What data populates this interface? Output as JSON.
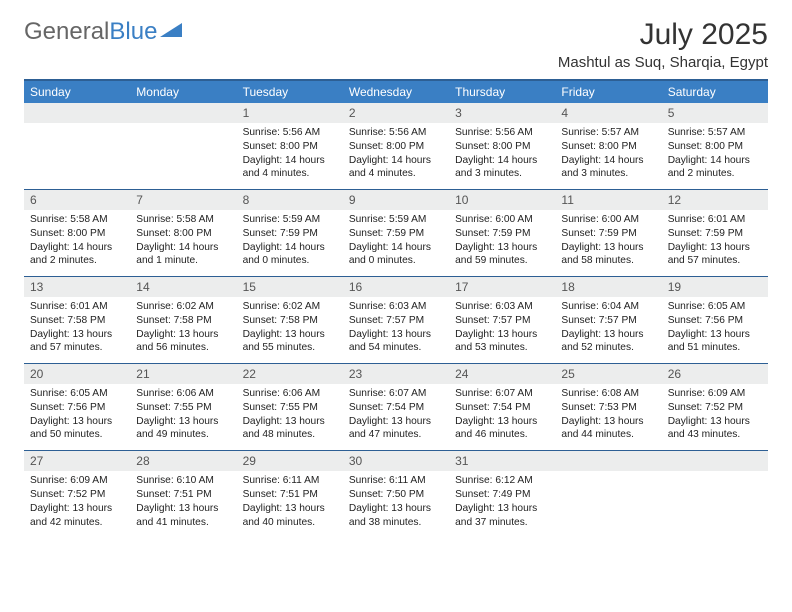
{
  "brand": {
    "part1": "General",
    "part2": "Blue"
  },
  "title": "July 2025",
  "location": "Mashtul as Suq, Sharqia, Egypt",
  "colors": {
    "header_bg": "#3a7fc4",
    "header_border": "#2d5f94",
    "daynum_bg": "#eceded",
    "text": "#222222"
  },
  "daysOfWeek": [
    "Sunday",
    "Monday",
    "Tuesday",
    "Wednesday",
    "Thursday",
    "Friday",
    "Saturday"
  ],
  "weeks": [
    [
      null,
      null,
      {
        "n": "1",
        "sr": "5:56 AM",
        "ss": "8:00 PM",
        "dl": "14 hours and 4 minutes."
      },
      {
        "n": "2",
        "sr": "5:56 AM",
        "ss": "8:00 PM",
        "dl": "14 hours and 4 minutes."
      },
      {
        "n": "3",
        "sr": "5:56 AM",
        "ss": "8:00 PM",
        "dl": "14 hours and 3 minutes."
      },
      {
        "n": "4",
        "sr": "5:57 AM",
        "ss": "8:00 PM",
        "dl": "14 hours and 3 minutes."
      },
      {
        "n": "5",
        "sr": "5:57 AM",
        "ss": "8:00 PM",
        "dl": "14 hours and 2 minutes."
      }
    ],
    [
      {
        "n": "6",
        "sr": "5:58 AM",
        "ss": "8:00 PM",
        "dl": "14 hours and 2 minutes."
      },
      {
        "n": "7",
        "sr": "5:58 AM",
        "ss": "8:00 PM",
        "dl": "14 hours and 1 minute."
      },
      {
        "n": "8",
        "sr": "5:59 AM",
        "ss": "7:59 PM",
        "dl": "14 hours and 0 minutes."
      },
      {
        "n": "9",
        "sr": "5:59 AM",
        "ss": "7:59 PM",
        "dl": "14 hours and 0 minutes."
      },
      {
        "n": "10",
        "sr": "6:00 AM",
        "ss": "7:59 PM",
        "dl": "13 hours and 59 minutes."
      },
      {
        "n": "11",
        "sr": "6:00 AM",
        "ss": "7:59 PM",
        "dl": "13 hours and 58 minutes."
      },
      {
        "n": "12",
        "sr": "6:01 AM",
        "ss": "7:59 PM",
        "dl": "13 hours and 57 minutes."
      }
    ],
    [
      {
        "n": "13",
        "sr": "6:01 AM",
        "ss": "7:58 PM",
        "dl": "13 hours and 57 minutes."
      },
      {
        "n": "14",
        "sr": "6:02 AM",
        "ss": "7:58 PM",
        "dl": "13 hours and 56 minutes."
      },
      {
        "n": "15",
        "sr": "6:02 AM",
        "ss": "7:58 PM",
        "dl": "13 hours and 55 minutes."
      },
      {
        "n": "16",
        "sr": "6:03 AM",
        "ss": "7:57 PM",
        "dl": "13 hours and 54 minutes."
      },
      {
        "n": "17",
        "sr": "6:03 AM",
        "ss": "7:57 PM",
        "dl": "13 hours and 53 minutes."
      },
      {
        "n": "18",
        "sr": "6:04 AM",
        "ss": "7:57 PM",
        "dl": "13 hours and 52 minutes."
      },
      {
        "n": "19",
        "sr": "6:05 AM",
        "ss": "7:56 PM",
        "dl": "13 hours and 51 minutes."
      }
    ],
    [
      {
        "n": "20",
        "sr": "6:05 AM",
        "ss": "7:56 PM",
        "dl": "13 hours and 50 minutes."
      },
      {
        "n": "21",
        "sr": "6:06 AM",
        "ss": "7:55 PM",
        "dl": "13 hours and 49 minutes."
      },
      {
        "n": "22",
        "sr": "6:06 AM",
        "ss": "7:55 PM",
        "dl": "13 hours and 48 minutes."
      },
      {
        "n": "23",
        "sr": "6:07 AM",
        "ss": "7:54 PM",
        "dl": "13 hours and 47 minutes."
      },
      {
        "n": "24",
        "sr": "6:07 AM",
        "ss": "7:54 PM",
        "dl": "13 hours and 46 minutes."
      },
      {
        "n": "25",
        "sr": "6:08 AM",
        "ss": "7:53 PM",
        "dl": "13 hours and 44 minutes."
      },
      {
        "n": "26",
        "sr": "6:09 AM",
        "ss": "7:52 PM",
        "dl": "13 hours and 43 minutes."
      }
    ],
    [
      {
        "n": "27",
        "sr": "6:09 AM",
        "ss": "7:52 PM",
        "dl": "13 hours and 42 minutes."
      },
      {
        "n": "28",
        "sr": "6:10 AM",
        "ss": "7:51 PM",
        "dl": "13 hours and 41 minutes."
      },
      {
        "n": "29",
        "sr": "6:11 AM",
        "ss": "7:51 PM",
        "dl": "13 hours and 40 minutes."
      },
      {
        "n": "30",
        "sr": "6:11 AM",
        "ss": "7:50 PM",
        "dl": "13 hours and 38 minutes."
      },
      {
        "n": "31",
        "sr": "6:12 AM",
        "ss": "7:49 PM",
        "dl": "13 hours and 37 minutes."
      },
      null,
      null
    ]
  ],
  "labels": {
    "sunrise": "Sunrise:",
    "sunset": "Sunset:",
    "daylight": "Daylight:"
  }
}
